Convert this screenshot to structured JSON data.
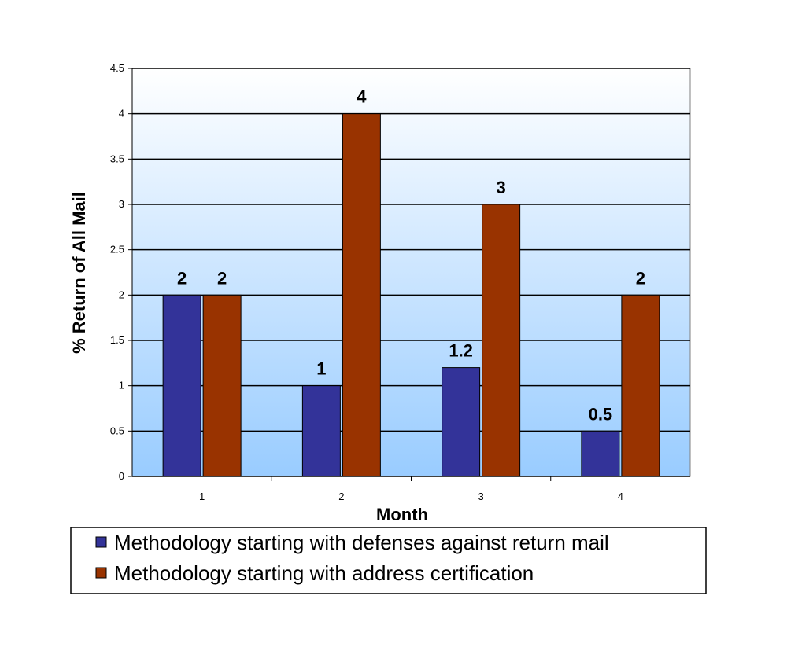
{
  "chart_data": {
    "type": "bar",
    "categories": [
      "1",
      "2",
      "3",
      "4"
    ],
    "series": [
      {
        "name": "Methodology starting with defenses against return mail",
        "values": [
          2,
          1,
          1.2,
          0.5
        ],
        "color": "#333399"
      },
      {
        "name": "Methodology starting with address certification",
        "values": [
          2,
          4,
          3,
          2
        ],
        "color": "#993300"
      }
    ],
    "data_labels": [
      [
        "2",
        "1",
        "1.2",
        "0.5"
      ],
      [
        "2",
        "4",
        "3",
        "2"
      ]
    ],
    "xlabel": "Month",
    "ylabel": "% Return of All Mail",
    "ylim": [
      0,
      4.5
    ],
    "yticks": [
      "0",
      "0.5",
      "1",
      "1.5",
      "2",
      "2.5",
      "3",
      "3.5",
      "4",
      "4.5"
    ],
    "grid": true,
    "legend_position": "bottom",
    "plot_background": {
      "top": "#ffffff",
      "bottom": "#99ccff"
    }
  }
}
